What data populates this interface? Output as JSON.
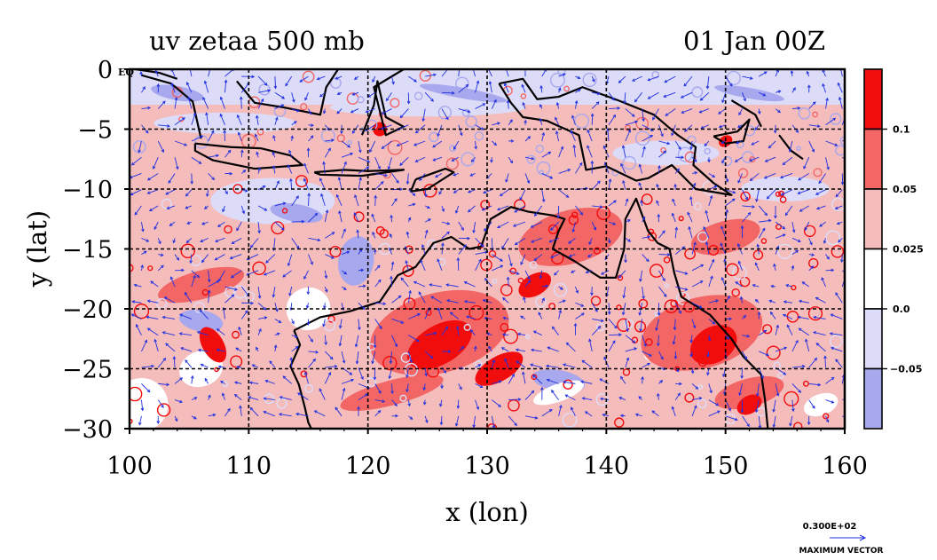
{
  "chart_data": {
    "type": "heatmap",
    "title_left": "uv zetaa 500 mb",
    "title_right": "01 Jan 00Z",
    "xlabel": "x (lon)",
    "ylabel": "y (lat)",
    "xlim": [
      100,
      160
    ],
    "ylim": [
      -30,
      0
    ],
    "x_ticks": [
      "100",
      "110",
      "120",
      "130",
      "140",
      "150",
      "160"
    ],
    "y_ticks": [
      "0",
      "−5",
      "−10",
      "−15",
      "−20",
      "−25",
      "−30"
    ],
    "eq_label": "EQ",
    "grid": true,
    "colorbar": {
      "levels": [
        "0.1",
        "0.05",
        "0.025",
        "0.0",
        "−0.05"
      ],
      "colors": [
        "#f20d0d",
        "#f26666",
        "#f5bcbc",
        "#ffffff",
        "#dcdcf8",
        "#a8a8ee"
      ]
    },
    "vector_reference": {
      "value": "0.300E+02",
      "label": "MAXIMUM VECTOR"
    },
    "colors": {
      "frame": "#000000",
      "vector": "#1f2fe0",
      "coast": "#000000"
    }
  }
}
